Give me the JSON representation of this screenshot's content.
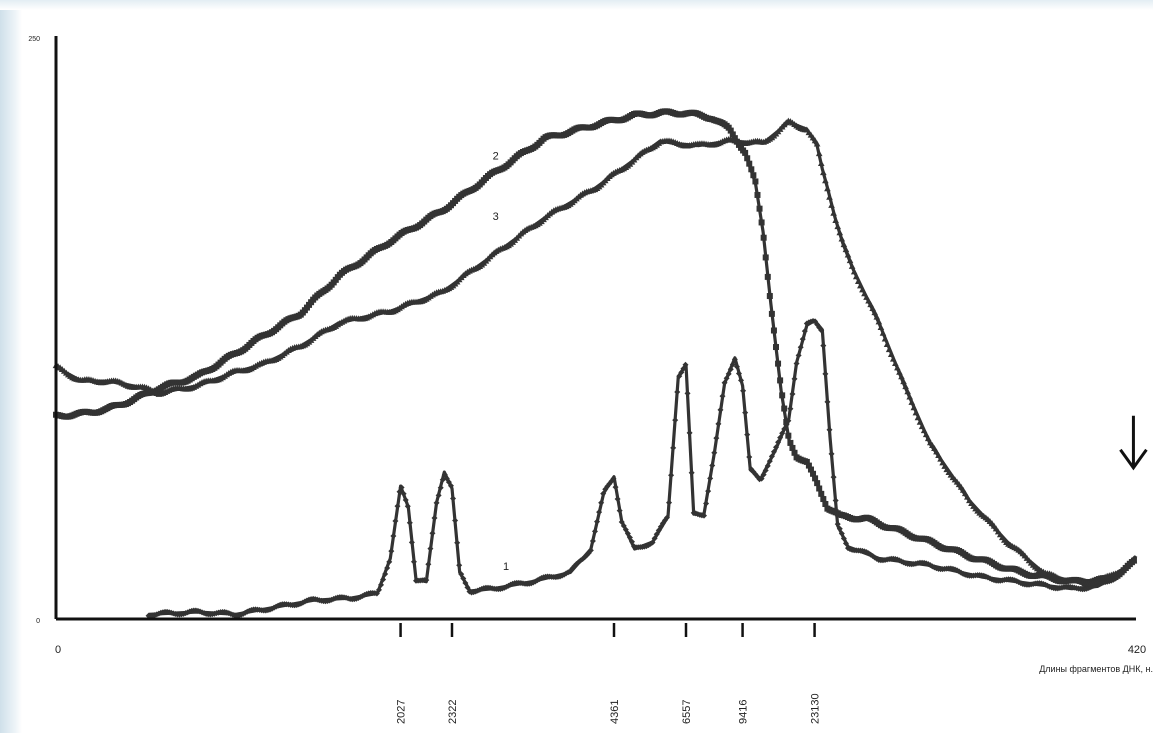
{
  "chart_data": {
    "type": "line",
    "title": "",
    "xlabel": "Длины фрагментов  ДНК, н.",
    "ylabel": "",
    "xlim": [
      0,
      420
    ],
    "ylim": [
      0,
      250
    ],
    "y_tick_labels": [
      "0",
      "250"
    ],
    "x_axis_start_label": "0",
    "x_axis_end_label": "420",
    "marker_ticks": [
      {
        "label": "2027",
        "x": 134
      },
      {
        "label": "2322",
        "x": 154
      },
      {
        "label": "4361",
        "x": 217
      },
      {
        "label": "6557",
        "x": 245
      },
      {
        "label": "9416",
        "x": 267
      },
      {
        "label": "23130",
        "x": 295
      }
    ],
    "series": [
      {
        "name": "1",
        "x": [
          36,
          55,
          70,
          85,
          100,
          115,
          125,
          130,
          134,
          137,
          140,
          144,
          148,
          151,
          154,
          157,
          161,
          170,
          185,
          200,
          208,
          213,
          217,
          220,
          225,
          232,
          238,
          242,
          245,
          248,
          252,
          256,
          260,
          264,
          267,
          270,
          274,
          280,
          285,
          288,
          292,
          295,
          298,
          301,
          304,
          308,
          320,
          340,
          360,
          380,
          395,
          405,
          412,
          417,
          420
        ],
        "y": [
          2,
          3,
          2,
          5,
          8,
          9,
          11,
          26,
          57,
          48,
          17,
          16,
          50,
          63,
          56,
          20,
          12,
          13,
          16,
          20,
          30,
          54,
          61,
          42,
          30,
          33,
          44,
          104,
          109,
          45,
          45,
          71,
          101,
          112,
          100,
          64,
          60,
          73,
          86,
          110,
          126,
          128,
          124,
          78,
          40,
          31,
          26,
          23,
          18,
          15,
          13,
          14,
          18,
          22,
          27
        ]
      },
      {
        "name": "2",
        "x": [
          0,
          10,
          20,
          30,
          40,
          55,
          70,
          80,
          95,
          110,
          130,
          150,
          170,
          190,
          210,
          225,
          235,
          245,
          255,
          262,
          268,
          272,
          275,
          278,
          282,
          285,
          288,
          292,
          296,
          300,
          305,
          315,
          335,
          355,
          375,
          395,
          410,
          420
        ],
        "y": [
          87,
          88,
          90,
          94,
          99,
          104,
          114,
          121,
          131,
          147,
          162,
          175,
          191,
          206,
          212,
          216,
          217,
          217,
          215,
          210,
          200,
          187,
          166,
          135,
          98,
          77,
          70,
          67,
          58,
          48,
          44,
          43,
          35,
          27,
          20,
          16,
          17,
          25
        ]
      },
      {
        "name": "3",
        "x": [
          0,
          10,
          20,
          30,
          40,
          55,
          70,
          80,
          95,
          110,
          130,
          150,
          170,
          190,
          210,
          225,
          235,
          240,
          250,
          262,
          275,
          285,
          292,
          296,
          298,
          300,
          303,
          306,
          310,
          320,
          330,
          340,
          355,
          370,
          385,
          400,
          410,
          420
        ],
        "y": [
          108,
          102,
          102,
          100,
          97,
          100,
          106,
          109,
          117,
          127,
          132,
          140,
          156,
          172,
          185,
          197,
          205,
          204,
          203,
          205,
          204,
          213,
          210,
          203,
          193,
          185,
          172,
          161,
          150,
          127,
          100,
          75,
          51,
          33,
          19,
          15,
          18,
          25
        ]
      }
    ],
    "annotations": [
      {
        "text": "arrow",
        "x": 419,
        "y": 64
      }
    ],
    "grid": false,
    "legend": "inline labels"
  }
}
